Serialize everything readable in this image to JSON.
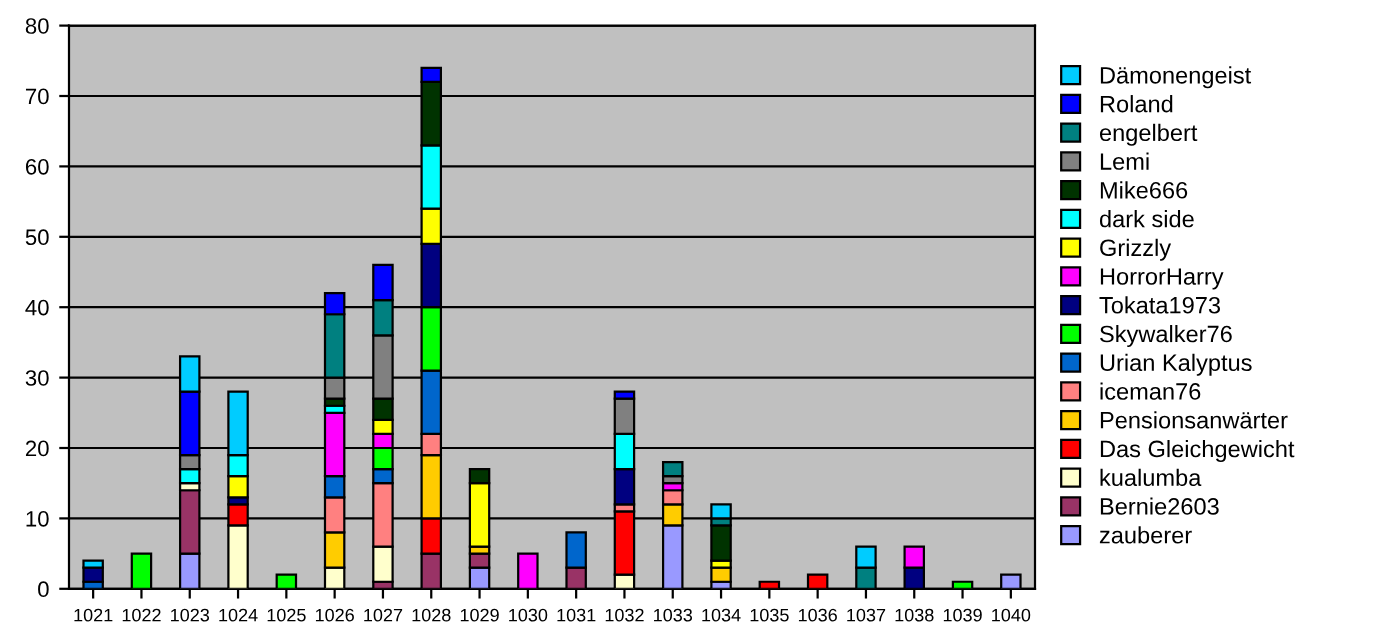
{
  "chart_data": {
    "type": "bar",
    "stacked": true,
    "categories": [
      "1021",
      "1022",
      "1023",
      "1024",
      "1025",
      "1026",
      "1027",
      "1028",
      "1029",
      "1030",
      "1031",
      "1032",
      "1033",
      "1034",
      "1035",
      "1036",
      "1037",
      "1038",
      "1039",
      "1040"
    ],
    "ylim": [
      0,
      80
    ],
    "yticks": [
      0,
      10,
      20,
      30,
      40,
      50,
      60,
      70,
      80
    ],
    "grid": "y",
    "legend": "right",
    "series": [
      {
        "name": "zauberer",
        "color": "#9999ff",
        "values": [
          null,
          null,
          5,
          null,
          null,
          null,
          null,
          null,
          3,
          null,
          null,
          null,
          9,
          1,
          null,
          null,
          null,
          null,
          null,
          2
        ]
      },
      {
        "name": "Bernie2603",
        "color": "#993366",
        "values": [
          null,
          null,
          9,
          null,
          null,
          null,
          1,
          5,
          2,
          null,
          3,
          null,
          null,
          null,
          null,
          null,
          null,
          null,
          null,
          null
        ]
      },
      {
        "name": "kualumba",
        "color": "#ffffcc",
        "values": [
          null,
          null,
          1,
          9,
          null,
          3,
          5,
          null,
          null,
          null,
          null,
          2,
          null,
          null,
          null,
          null,
          null,
          null,
          null,
          null
        ]
      },
      {
        "name": "Das Gleichgewicht",
        "color": "#ff0000",
        "values": [
          null,
          null,
          null,
          3,
          null,
          null,
          null,
          5,
          null,
          null,
          null,
          9,
          null,
          null,
          1,
          2,
          null,
          null,
          null,
          null
        ]
      },
      {
        "name": "Pensionsanwärter",
        "color": "#ffcc00",
        "values": [
          null,
          null,
          null,
          null,
          null,
          5,
          null,
          9,
          1,
          null,
          null,
          null,
          3,
          2,
          null,
          null,
          null,
          null,
          null,
          null
        ]
      },
      {
        "name": "iceman76",
        "color": "#ff8080",
        "values": [
          null,
          null,
          null,
          null,
          null,
          5,
          9,
          3,
          null,
          null,
          null,
          1,
          2,
          null,
          null,
          null,
          null,
          null,
          null,
          null
        ]
      },
      {
        "name": "Urian Kalyptus",
        "color": "#0066cc",
        "values": [
          1,
          null,
          null,
          null,
          null,
          3,
          2,
          9,
          null,
          null,
          5,
          null,
          null,
          null,
          null,
          null,
          null,
          null,
          null,
          null
        ]
      },
      {
        "name": "Skywalker76",
        "color": "#00ff00",
        "values": [
          null,
          5,
          null,
          null,
          2,
          null,
          3,
          9,
          null,
          null,
          null,
          null,
          null,
          null,
          null,
          null,
          null,
          null,
          1,
          null
        ]
      },
      {
        "name": "Tokata1973",
        "color": "#000080",
        "values": [
          2,
          null,
          null,
          1,
          null,
          null,
          null,
          9,
          null,
          null,
          null,
          5,
          null,
          null,
          null,
          null,
          null,
          3,
          null,
          null
        ]
      },
      {
        "name": "HorrorHarry",
        "color": "#ff00ff",
        "values": [
          null,
          null,
          null,
          null,
          null,
          9,
          2,
          null,
          null,
          5,
          null,
          null,
          1,
          null,
          null,
          null,
          null,
          3,
          null,
          null
        ]
      },
      {
        "name": "Grizzly",
        "color": "#ffff00",
        "values": [
          null,
          null,
          null,
          3,
          null,
          null,
          2,
          5,
          9,
          null,
          null,
          null,
          null,
          1,
          null,
          null,
          null,
          null,
          null,
          null
        ]
      },
      {
        "name": "dark side",
        "color": "#00ffff",
        "values": [
          null,
          null,
          2,
          3,
          null,
          1,
          null,
          9,
          null,
          null,
          null,
          5,
          null,
          null,
          null,
          null,
          null,
          null,
          null,
          null
        ]
      },
      {
        "name": "Mike666",
        "color": "#003300",
        "values": [
          null,
          null,
          null,
          null,
          null,
          1,
          3,
          9,
          2,
          null,
          null,
          null,
          null,
          5,
          null,
          null,
          null,
          null,
          null,
          null
        ]
      },
      {
        "name": "Lemi",
        "color": "#808080",
        "values": [
          null,
          null,
          2,
          null,
          null,
          3,
          9,
          null,
          null,
          null,
          null,
          5,
          1,
          null,
          null,
          null,
          null,
          null,
          null,
          null
        ]
      },
      {
        "name": "engelbert",
        "color": "#008080",
        "values": [
          null,
          null,
          null,
          null,
          null,
          9,
          5,
          null,
          null,
          null,
          null,
          null,
          2,
          1,
          null,
          null,
          3,
          null,
          null,
          null
        ]
      },
      {
        "name": "Roland",
        "color": "#0000ff",
        "values": [
          null,
          null,
          9,
          null,
          null,
          3,
          5,
          2,
          null,
          null,
          null,
          1,
          null,
          null,
          null,
          null,
          null,
          null,
          null,
          null
        ]
      },
      {
        "name": "Dämonengeist",
        "color": "#00ccff",
        "values": [
          1,
          null,
          5,
          9,
          null,
          null,
          null,
          null,
          null,
          null,
          null,
          null,
          null,
          2,
          null,
          null,
          3,
          null,
          null,
          null
        ]
      }
    ]
  }
}
